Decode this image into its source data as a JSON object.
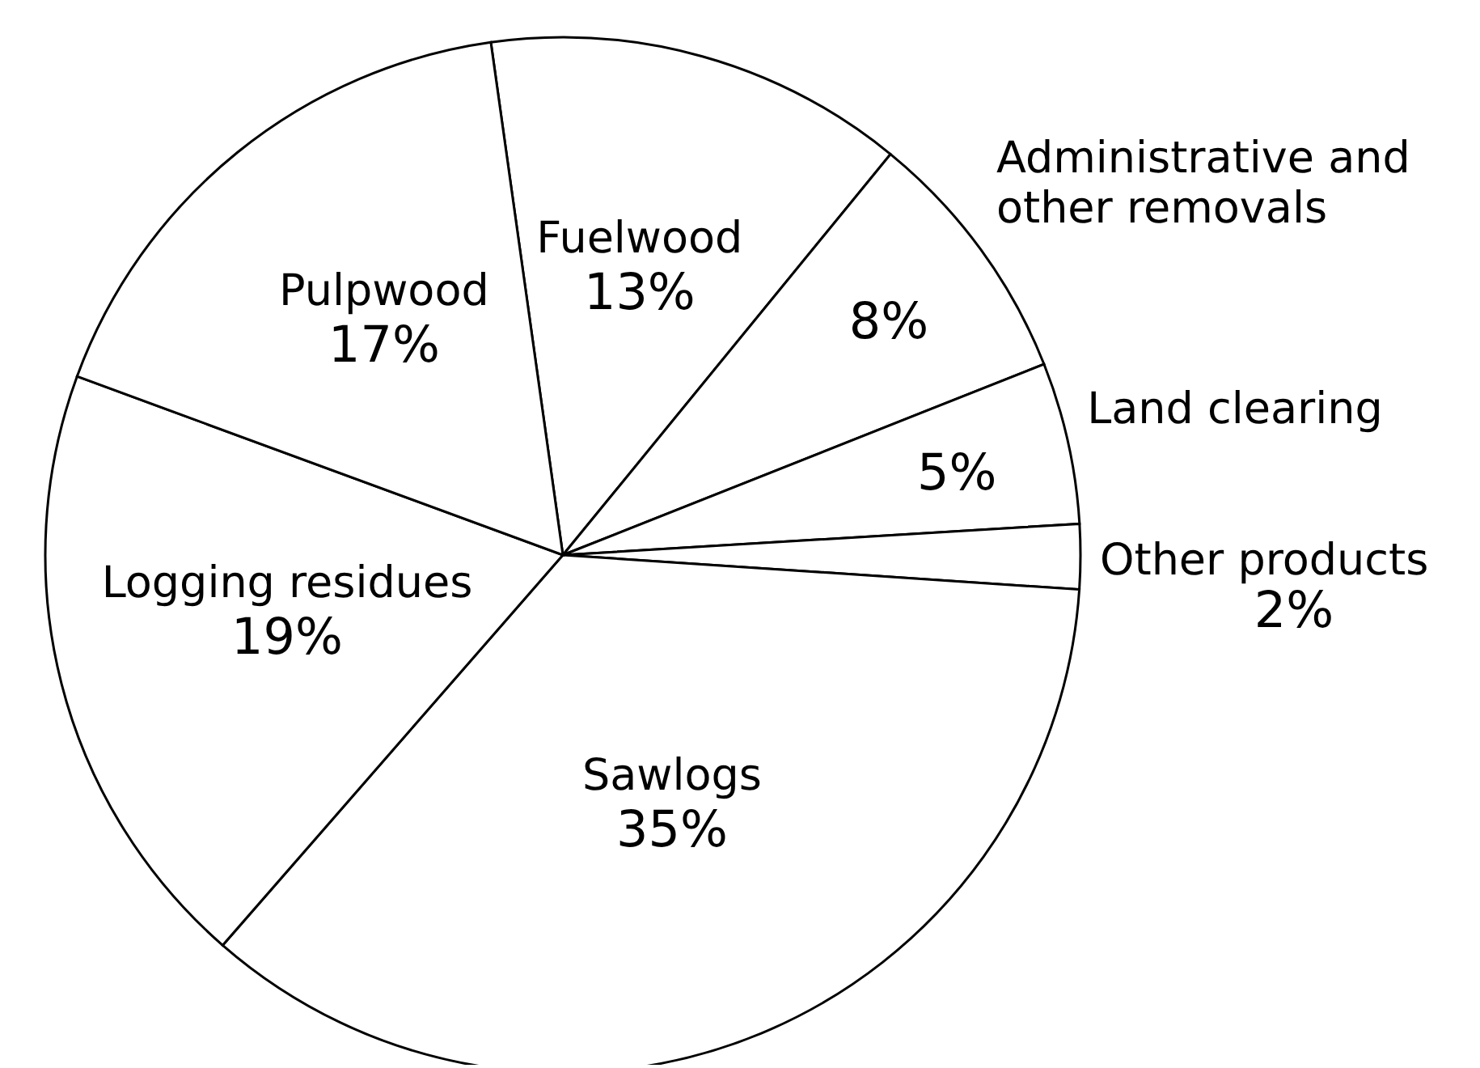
{
  "chart_data": {
    "type": "pie",
    "categories": [
      "Fuelwood",
      "Administrative and other removals",
      "Land clearing",
      "Other products",
      "Sawlogs",
      "Logging residues",
      "Pulpwood"
    ],
    "values": [
      13,
      8,
      5,
      2,
      35,
      19,
      17
    ],
    "value_labels": [
      "13%",
      "8%",
      "5%",
      "2%",
      "35%",
      "19%",
      "17%"
    ],
    "colors": [
      "#ffffff",
      "#ffffff",
      "#ffffff",
      "#ffffff",
      "#ffffff",
      "#ffffff",
      "#ffffff"
    ]
  }
}
